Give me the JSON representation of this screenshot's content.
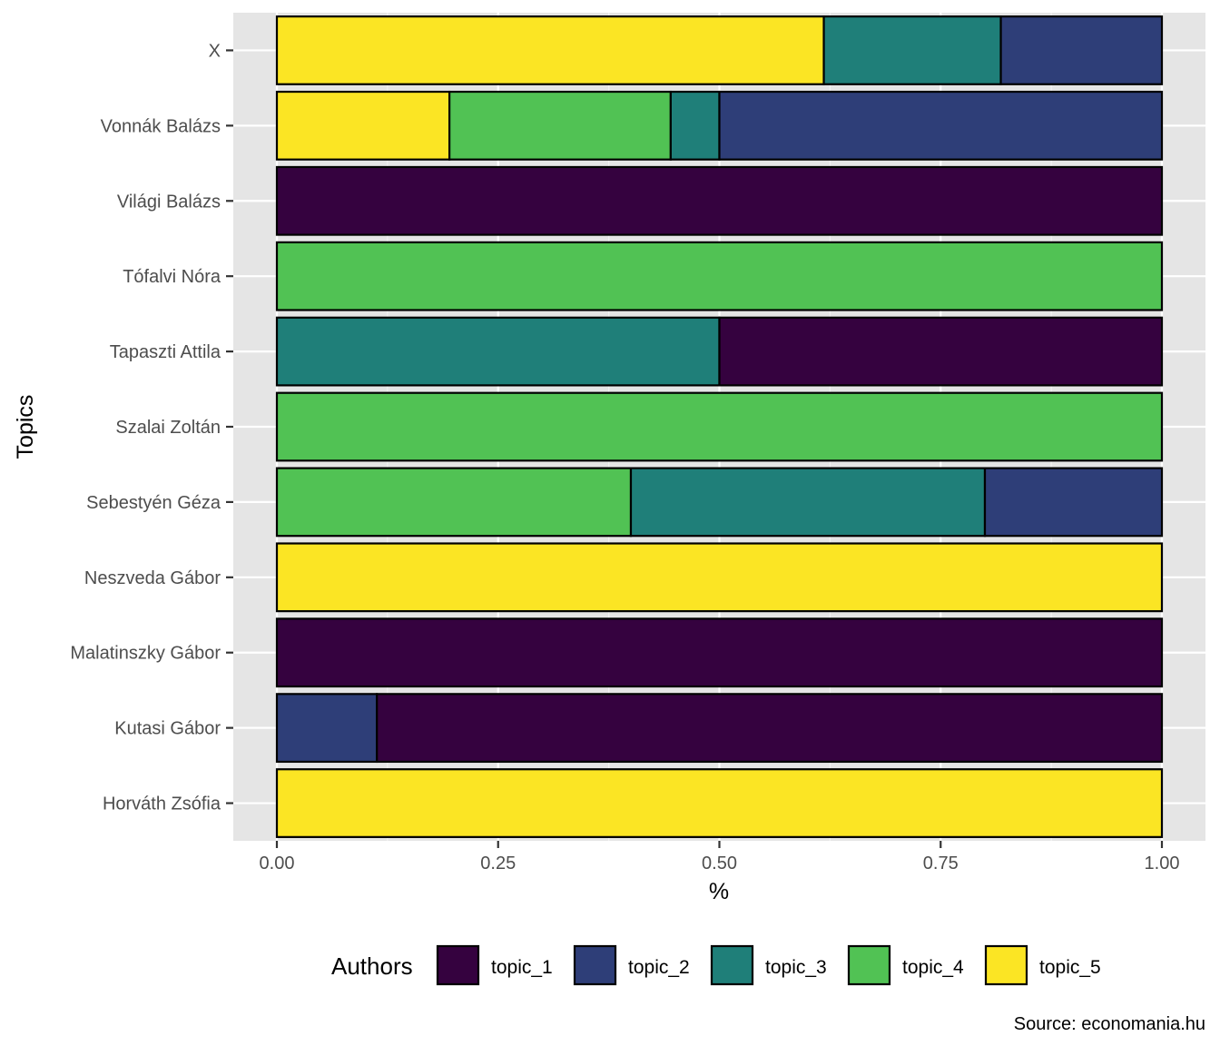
{
  "chart_data": {
    "type": "bar",
    "orientation": "horizontal",
    "stacked": true,
    "ylabel": "Topics",
    "xlabel": "%",
    "xlim": [
      0,
      1
    ],
    "xticks": [
      "0.00",
      "0.25",
      "0.50",
      "0.75",
      "1.00"
    ],
    "xtick_values": [
      0,
      0.25,
      0.5,
      0.75,
      1.0
    ],
    "grid": true,
    "legend_position": "bottom",
    "legend_title": "Authors",
    "source": "Source: economania.hu",
    "categories": [
      "X",
      "Vonnák Balázs",
      "Világi Balázs",
      "Tófalvi Nóra",
      "Tapaszti Attila",
      "Szalai Zoltán",
      "Sebestyén Géza",
      "Neszveda Gábor",
      "Malatinszky Gábor",
      "Kutasi Gábor",
      "Horváth Zsófia"
    ],
    "series": [
      {
        "name": "topic_1",
        "color": "#35023f",
        "values": [
          0,
          0,
          1.0,
          0,
          0.5,
          0,
          0,
          0,
          1.0,
          0.887,
          0
        ]
      },
      {
        "name": "topic_2",
        "color": "#2e3e78",
        "values": [
          0.182,
          0.5,
          0,
          0,
          0,
          0,
          0.2,
          0,
          0,
          0.113,
          0
        ]
      },
      {
        "name": "topic_3",
        "color": "#1f7f79",
        "values": [
          0.2,
          0.055,
          0,
          0,
          0.5,
          0,
          0.4,
          0,
          0,
          0,
          0
        ]
      },
      {
        "name": "topic_4",
        "color": "#51c254",
        "values": [
          0,
          0.25,
          0,
          1.0,
          0,
          1.0,
          0.4,
          0,
          0,
          0,
          0
        ]
      },
      {
        "name": "topic_5",
        "color": "#fbe524",
        "values": [
          0.618,
          0.195,
          0,
          0,
          0,
          0,
          0,
          1.0,
          0,
          0,
          1.0
        ]
      }
    ]
  }
}
